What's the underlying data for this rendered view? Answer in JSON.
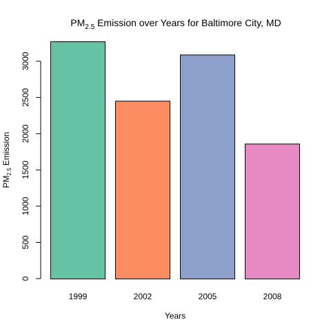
{
  "chart_data": {
    "type": "bar",
    "title": {
      "main": "PM",
      "sub": "2.5",
      "rest": " Emission over Years for Baltimore City, MD"
    },
    "xlabel": "Years",
    "ylabel": {
      "main": "PM",
      "sub": "2.5",
      "rest": " Emission"
    },
    "categories": [
      "1999",
      "2002",
      "2005",
      "2008"
    ],
    "values": [
      3274.18,
      2453.92,
      3091.35,
      1862.28
    ],
    "ylim": [
      0,
      3274.18
    ],
    "yticks": [
      "0",
      "500",
      "1000",
      "1500",
      "2000",
      "2500",
      "3000"
    ],
    "colors": [
      "#66C2A5",
      "#FC8D62",
      "#8DA0CB",
      "#E78AC3"
    ],
    "grid": false,
    "legend": "none"
  }
}
